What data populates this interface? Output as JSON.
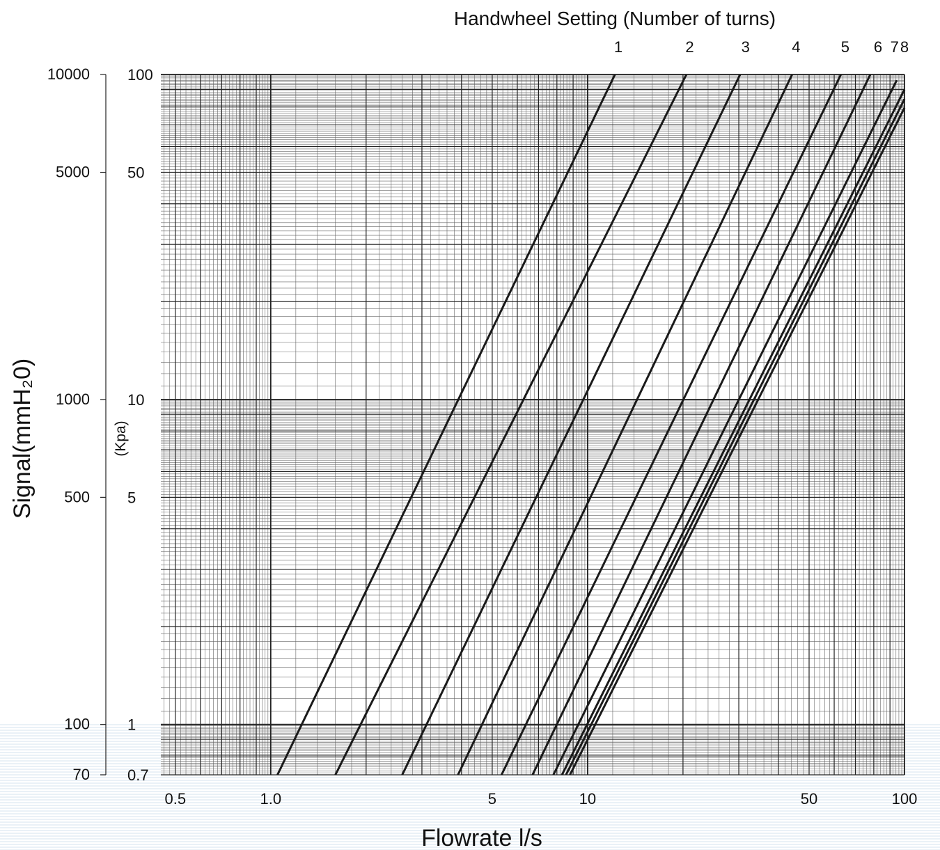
{
  "chart_data": {
    "type": "line",
    "title": "Handwheel Setting (Number of turns)",
    "xlabel": "Flowrate l/s",
    "ylabel": "Signal(mmH₂0)",
    "ylabel_secondary": "(Kpa)",
    "x_scale": "log",
    "y_scale": "log",
    "xlim": [
      0.45,
      100
    ],
    "ylim_kpa": [
      0.7,
      100
    ],
    "ylim_mmh2o": [
      70,
      10000
    ],
    "grid": true,
    "x_ticks": [
      {
        "value": 0.5,
        "label": "0.5"
      },
      {
        "value": 1,
        "label": "1.0"
      },
      {
        "value": 5,
        "label": "5"
      },
      {
        "value": 10,
        "label": "10"
      },
      {
        "value": 50,
        "label": "50"
      },
      {
        "value": 100,
        "label": "100"
      }
    ],
    "y_ticks_mmh2o": [
      {
        "value": 10000,
        "label": "10000"
      },
      {
        "value": 5000,
        "label": "5000"
      },
      {
        "value": 1000,
        "label": "1000"
      },
      {
        "value": 500,
        "label": "500"
      },
      {
        "value": 100,
        "label": "100"
      },
      {
        "value": 70,
        "label": "70"
      }
    ],
    "y_ticks_kpa": [
      {
        "value": 100,
        "label": "100"
      },
      {
        "value": 50,
        "label": "50"
      },
      {
        "value": 10,
        "label": "10"
      },
      {
        "value": 5,
        "label": "5"
      },
      {
        "value": 1,
        "label": "1"
      },
      {
        "value": 0.7,
        "label": "0.7"
      }
    ],
    "series": [
      {
        "label": "1",
        "label_x": 12.5,
        "x": [
          1.05,
          12.2
        ],
        "y": [
          0.7,
          100
        ]
      },
      {
        "label": "2",
        "label_x": 21,
        "x": [
          1.6,
          20.5
        ],
        "y": [
          0.7,
          100
        ]
      },
      {
        "label": "3",
        "label_x": 31.5,
        "x": [
          2.6,
          30.3
        ],
        "y": [
          0.7,
          100
        ]
      },
      {
        "label": "4",
        "label_x": 45.5,
        "x": [
          3.9,
          44.2
        ],
        "y": [
          0.7,
          100
        ]
      },
      {
        "label": "5",
        "label_x": 65,
        "x": [
          5.35,
          63
        ],
        "y": [
          0.7,
          100
        ]
      },
      {
        "label": "6",
        "label_x": 82.5,
        "x": [
          6.7,
          78
        ],
        "y": [
          0.7,
          100
        ]
      },
      {
        "label": "7",
        "label_x": 93,
        "x": [
          7.8,
          94.5
        ],
        "y": [
          0.7,
          96
        ]
      },
      {
        "label": "8",
        "label_x": 100,
        "x": [
          8.3,
          100
        ],
        "y": [
          0.7,
          90
        ]
      },
      {
        "x": [
          8.55,
          100
        ],
        "y": [
          0.7,
          84
        ]
      },
      {
        "x": [
          8.8,
          100
        ],
        "y": [
          0.7,
          79
        ]
      }
    ]
  }
}
